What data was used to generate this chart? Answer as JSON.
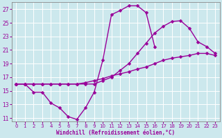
{
  "xlabel": "Windchill (Refroidissement éolien,°C)",
  "background_color": "#cce8ed",
  "grid_color": "#ffffff",
  "line_color": "#990099",
  "marker": "D",
  "markersize": 2.5,
  "linewidth": 1.0,
  "xlim": [
    -0.5,
    23.5
  ],
  "ylim": [
    10.5,
    28.0
  ],
  "xticks": [
    0,
    1,
    2,
    3,
    4,
    5,
    6,
    7,
    8,
    9,
    10,
    11,
    12,
    13,
    14,
    15,
    16,
    17,
    18,
    19,
    20,
    21,
    22,
    23
  ],
  "yticks": [
    11,
    13,
    15,
    17,
    19,
    21,
    23,
    25,
    27
  ],
  "lines": [
    {
      "x": [
        0,
        1,
        2,
        3,
        4,
        5,
        6,
        7,
        8,
        9,
        10,
        11,
        12,
        13,
        14,
        15,
        16,
        17,
        18,
        19,
        20,
        21,
        22,
        23
      ],
      "y": [
        16,
        16,
        14.8,
        14.8,
        13.2,
        12.5,
        11.2,
        10.8,
        12.5,
        14.8,
        19.5,
        26.2,
        26.8,
        27.5,
        27.5,
        26.5,
        21.5,
        null,
        null,
        null,
        null,
        null,
        null,
        null
      ]
    },
    {
      "x": [
        0,
        1,
        2,
        3,
        4,
        5,
        6,
        7,
        8,
        9,
        10,
        11,
        12,
        13,
        14,
        15,
        16,
        17,
        18,
        19,
        20,
        21,
        22,
        23
      ],
      "y": [
        16,
        16,
        16,
        16,
        16,
        16,
        16,
        16,
        16,
        16,
        16.5,
        17,
        18,
        19,
        20.5,
        22,
        23.5,
        24.5,
        25.2,
        25.3,
        24.2,
        22.2,
        21.5,
        20.5
      ]
    },
    {
      "x": [
        0,
        1,
        2,
        3,
        4,
        5,
        6,
        7,
        8,
        9,
        10,
        11,
        12,
        13,
        14,
        15,
        16,
        17,
        18,
        19,
        20,
        21,
        22,
        23
      ],
      "y": [
        16,
        16,
        16,
        16,
        16,
        16,
        16,
        16,
        16.2,
        16.5,
        16.8,
        17.2,
        17.5,
        17.8,
        18.2,
        18.5,
        19.0,
        19.5,
        19.8,
        20.0,
        20.2,
        20.5,
        20.5,
        20.2
      ]
    }
  ]
}
